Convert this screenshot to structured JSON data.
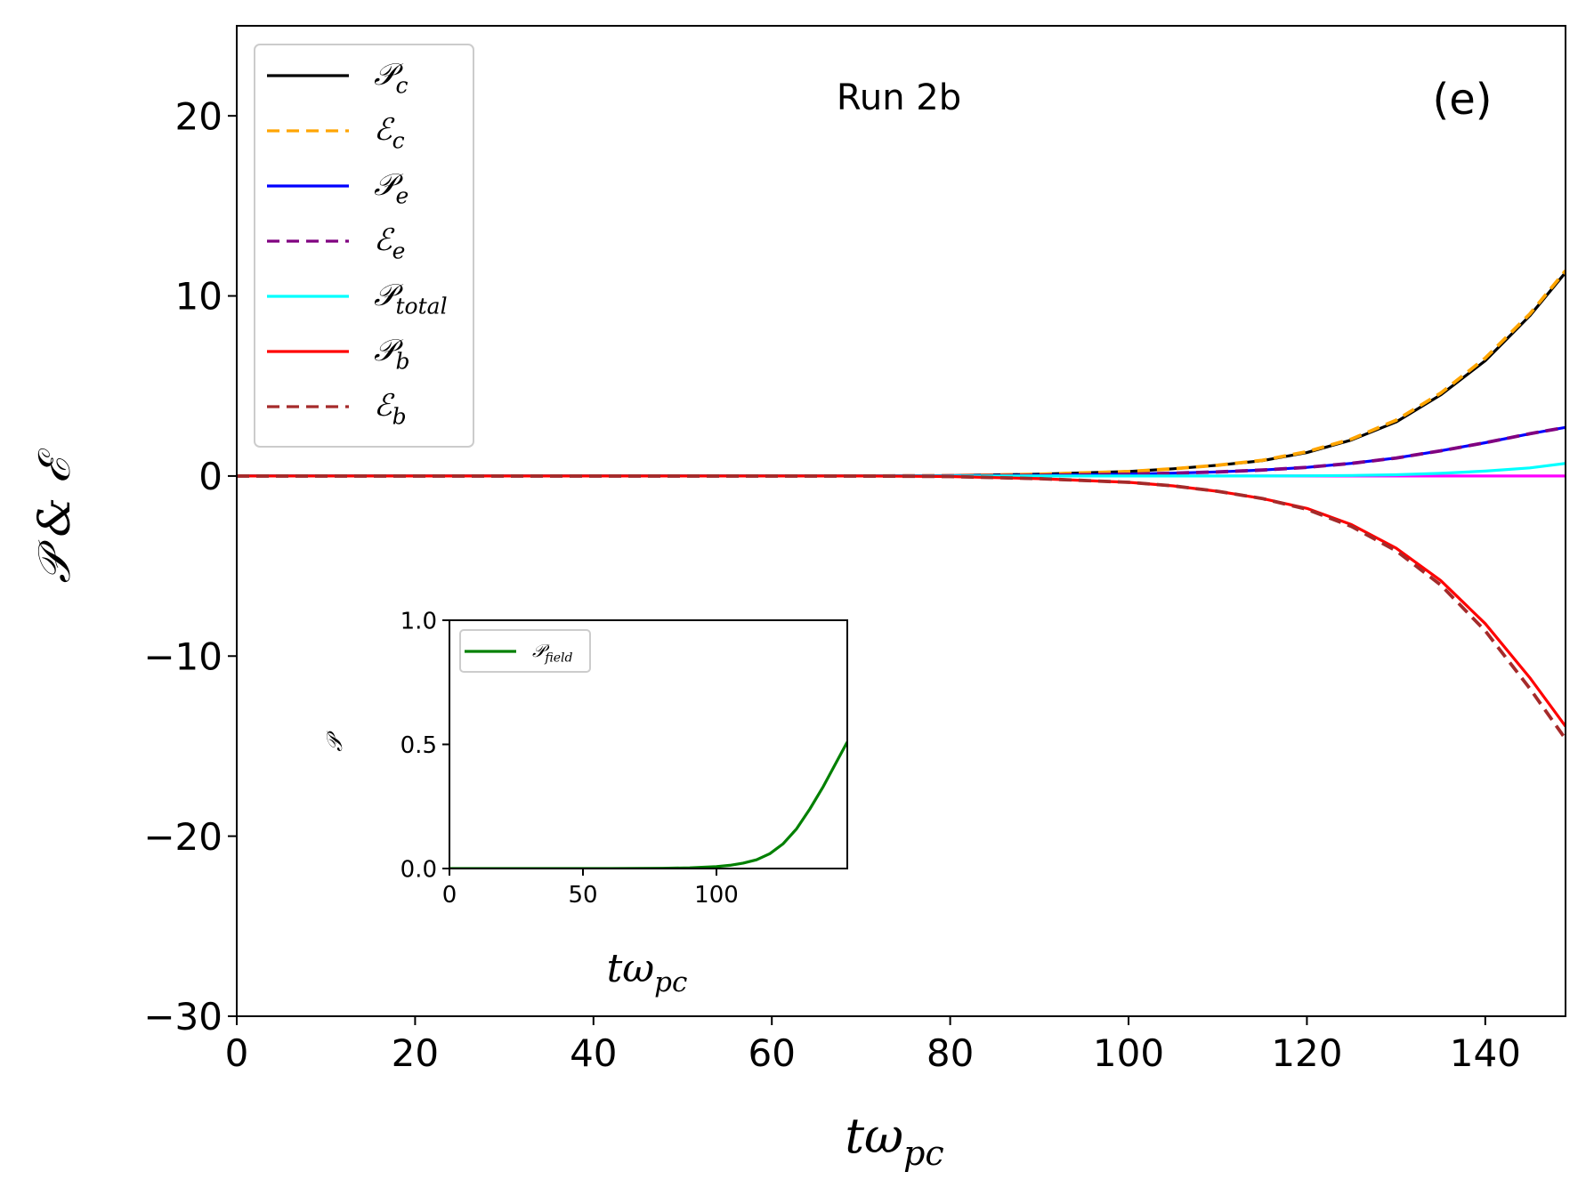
{
  "chart_data": [
    {
      "type": "line",
      "id": "main",
      "title": "",
      "annotations": {
        "run": "Run 2b",
        "panel": "(e)"
      },
      "xlabel": "tω",
      "xlabel_sub": "pc",
      "ylabel": "𝒫 & ℰ",
      "xlim": [
        0,
        149
      ],
      "ylim": [
        -30,
        25
      ],
      "xticks": [
        0,
        20,
        40,
        60,
        80,
        100,
        120,
        140
      ],
      "xtick_labels": [
        "0",
        "20",
        "40",
        "60",
        "80",
        "100",
        "120",
        "140"
      ],
      "yticks": [
        -30,
        -20,
        -10,
        0,
        10,
        20
      ],
      "ytick_labels": [
        "−30",
        "−20",
        "−10",
        "0",
        "10",
        "20"
      ],
      "legend_position": "top-left",
      "x": [
        0,
        70,
        80,
        90,
        100,
        105,
        110,
        115,
        120,
        125,
        130,
        135,
        140,
        145,
        149
      ],
      "series": [
        {
          "name": "Pc",
          "legend": "𝒫",
          "sub": "c",
          "color": "#000000",
          "dash": "solid",
          "values": [
            0,
            0,
            0.02,
            0.1,
            0.25,
            0.4,
            0.6,
            0.85,
            1.3,
            2.0,
            3.0,
            4.5,
            6.4,
            8.9,
            11.3
          ]
        },
        {
          "name": "Ec",
          "legend": "ℰ",
          "sub": "c",
          "color": "#ffa500",
          "dash": "dashed",
          "values": [
            0,
            0,
            0.02,
            0.1,
            0.25,
            0.4,
            0.6,
            0.87,
            1.35,
            2.05,
            3.1,
            4.6,
            6.55,
            9.0,
            11.4
          ]
        },
        {
          "name": "Pe",
          "legend": "𝒫",
          "sub": "e",
          "color": "#0000ff",
          "dash": "solid",
          "values": [
            0,
            0,
            0.01,
            0.04,
            0.1,
            0.16,
            0.23,
            0.33,
            0.48,
            0.7,
            1.0,
            1.4,
            1.85,
            2.35,
            2.7
          ]
        },
        {
          "name": "Ee",
          "legend": "ℰ",
          "sub": "e",
          "color": "#800080",
          "dash": "dashed",
          "values": [
            0,
            0,
            0.01,
            0.04,
            0.1,
            0.16,
            0.23,
            0.33,
            0.48,
            0.7,
            1.0,
            1.4,
            1.85,
            2.35,
            2.7
          ]
        },
        {
          "name": "Ptotal",
          "legend": "𝒫",
          "sub": "total",
          "color": "#00ffff",
          "dash": "solid",
          "values": [
            0,
            0,
            0,
            0,
            0,
            0,
            0,
            0,
            0.01,
            0.03,
            0.07,
            0.15,
            0.27,
            0.45,
            0.7
          ]
        },
        {
          "name": "Pb",
          "legend": "𝒫",
          "sub": "b",
          "color": "#ff0000",
          "dash": "solid",
          "values": [
            0,
            0,
            -0.03,
            -0.15,
            -0.35,
            -0.55,
            -0.85,
            -1.25,
            -1.8,
            -2.7,
            -4.0,
            -5.8,
            -8.2,
            -11.2,
            -13.9
          ]
        },
        {
          "name": "Eb",
          "legend": "ℰ",
          "sub": "b",
          "color": "#a52a2a",
          "dash": "dashed",
          "values": [
            0,
            0,
            -0.03,
            -0.15,
            -0.35,
            -0.55,
            -0.85,
            -1.25,
            -1.85,
            -2.8,
            -4.15,
            -6.05,
            -8.6,
            -11.8,
            -14.6
          ]
        },
        {
          "name": "baseline",
          "legend": "",
          "sub": "",
          "color": "#ff00ff",
          "dash": "solid",
          "in_legend": false,
          "values": [
            0,
            0,
            0,
            0,
            0,
            0,
            0,
            0,
            0,
            0,
            0,
            0,
            0,
            0,
            0
          ]
        }
      ]
    },
    {
      "type": "line",
      "id": "inset",
      "xlabel": "tω",
      "xlabel_sub": "pc",
      "ylabel": "𝒫",
      "xlim": [
        0,
        149
      ],
      "ylim": [
        0,
        1
      ],
      "xticks": [
        0,
        50,
        100
      ],
      "xtick_labels": [
        "0",
        "50",
        "100"
      ],
      "yticks": [
        0,
        0.5,
        1
      ],
      "ytick_labels": [
        "0.0",
        "0.5",
        "1.0"
      ],
      "legend_position": "top-left",
      "x": [
        0,
        60,
        80,
        90,
        100,
        105,
        110,
        115,
        120,
        125,
        130,
        135,
        140,
        145,
        149
      ],
      "series": [
        {
          "name": "Pfield",
          "legend": "𝒫",
          "sub": "field",
          "color": "#008000",
          "dash": "solid",
          "values": [
            0,
            0,
            0.001,
            0.003,
            0.008,
            0.013,
            0.022,
            0.035,
            0.06,
            0.1,
            0.16,
            0.24,
            0.33,
            0.43,
            0.51
          ]
        }
      ]
    }
  ]
}
